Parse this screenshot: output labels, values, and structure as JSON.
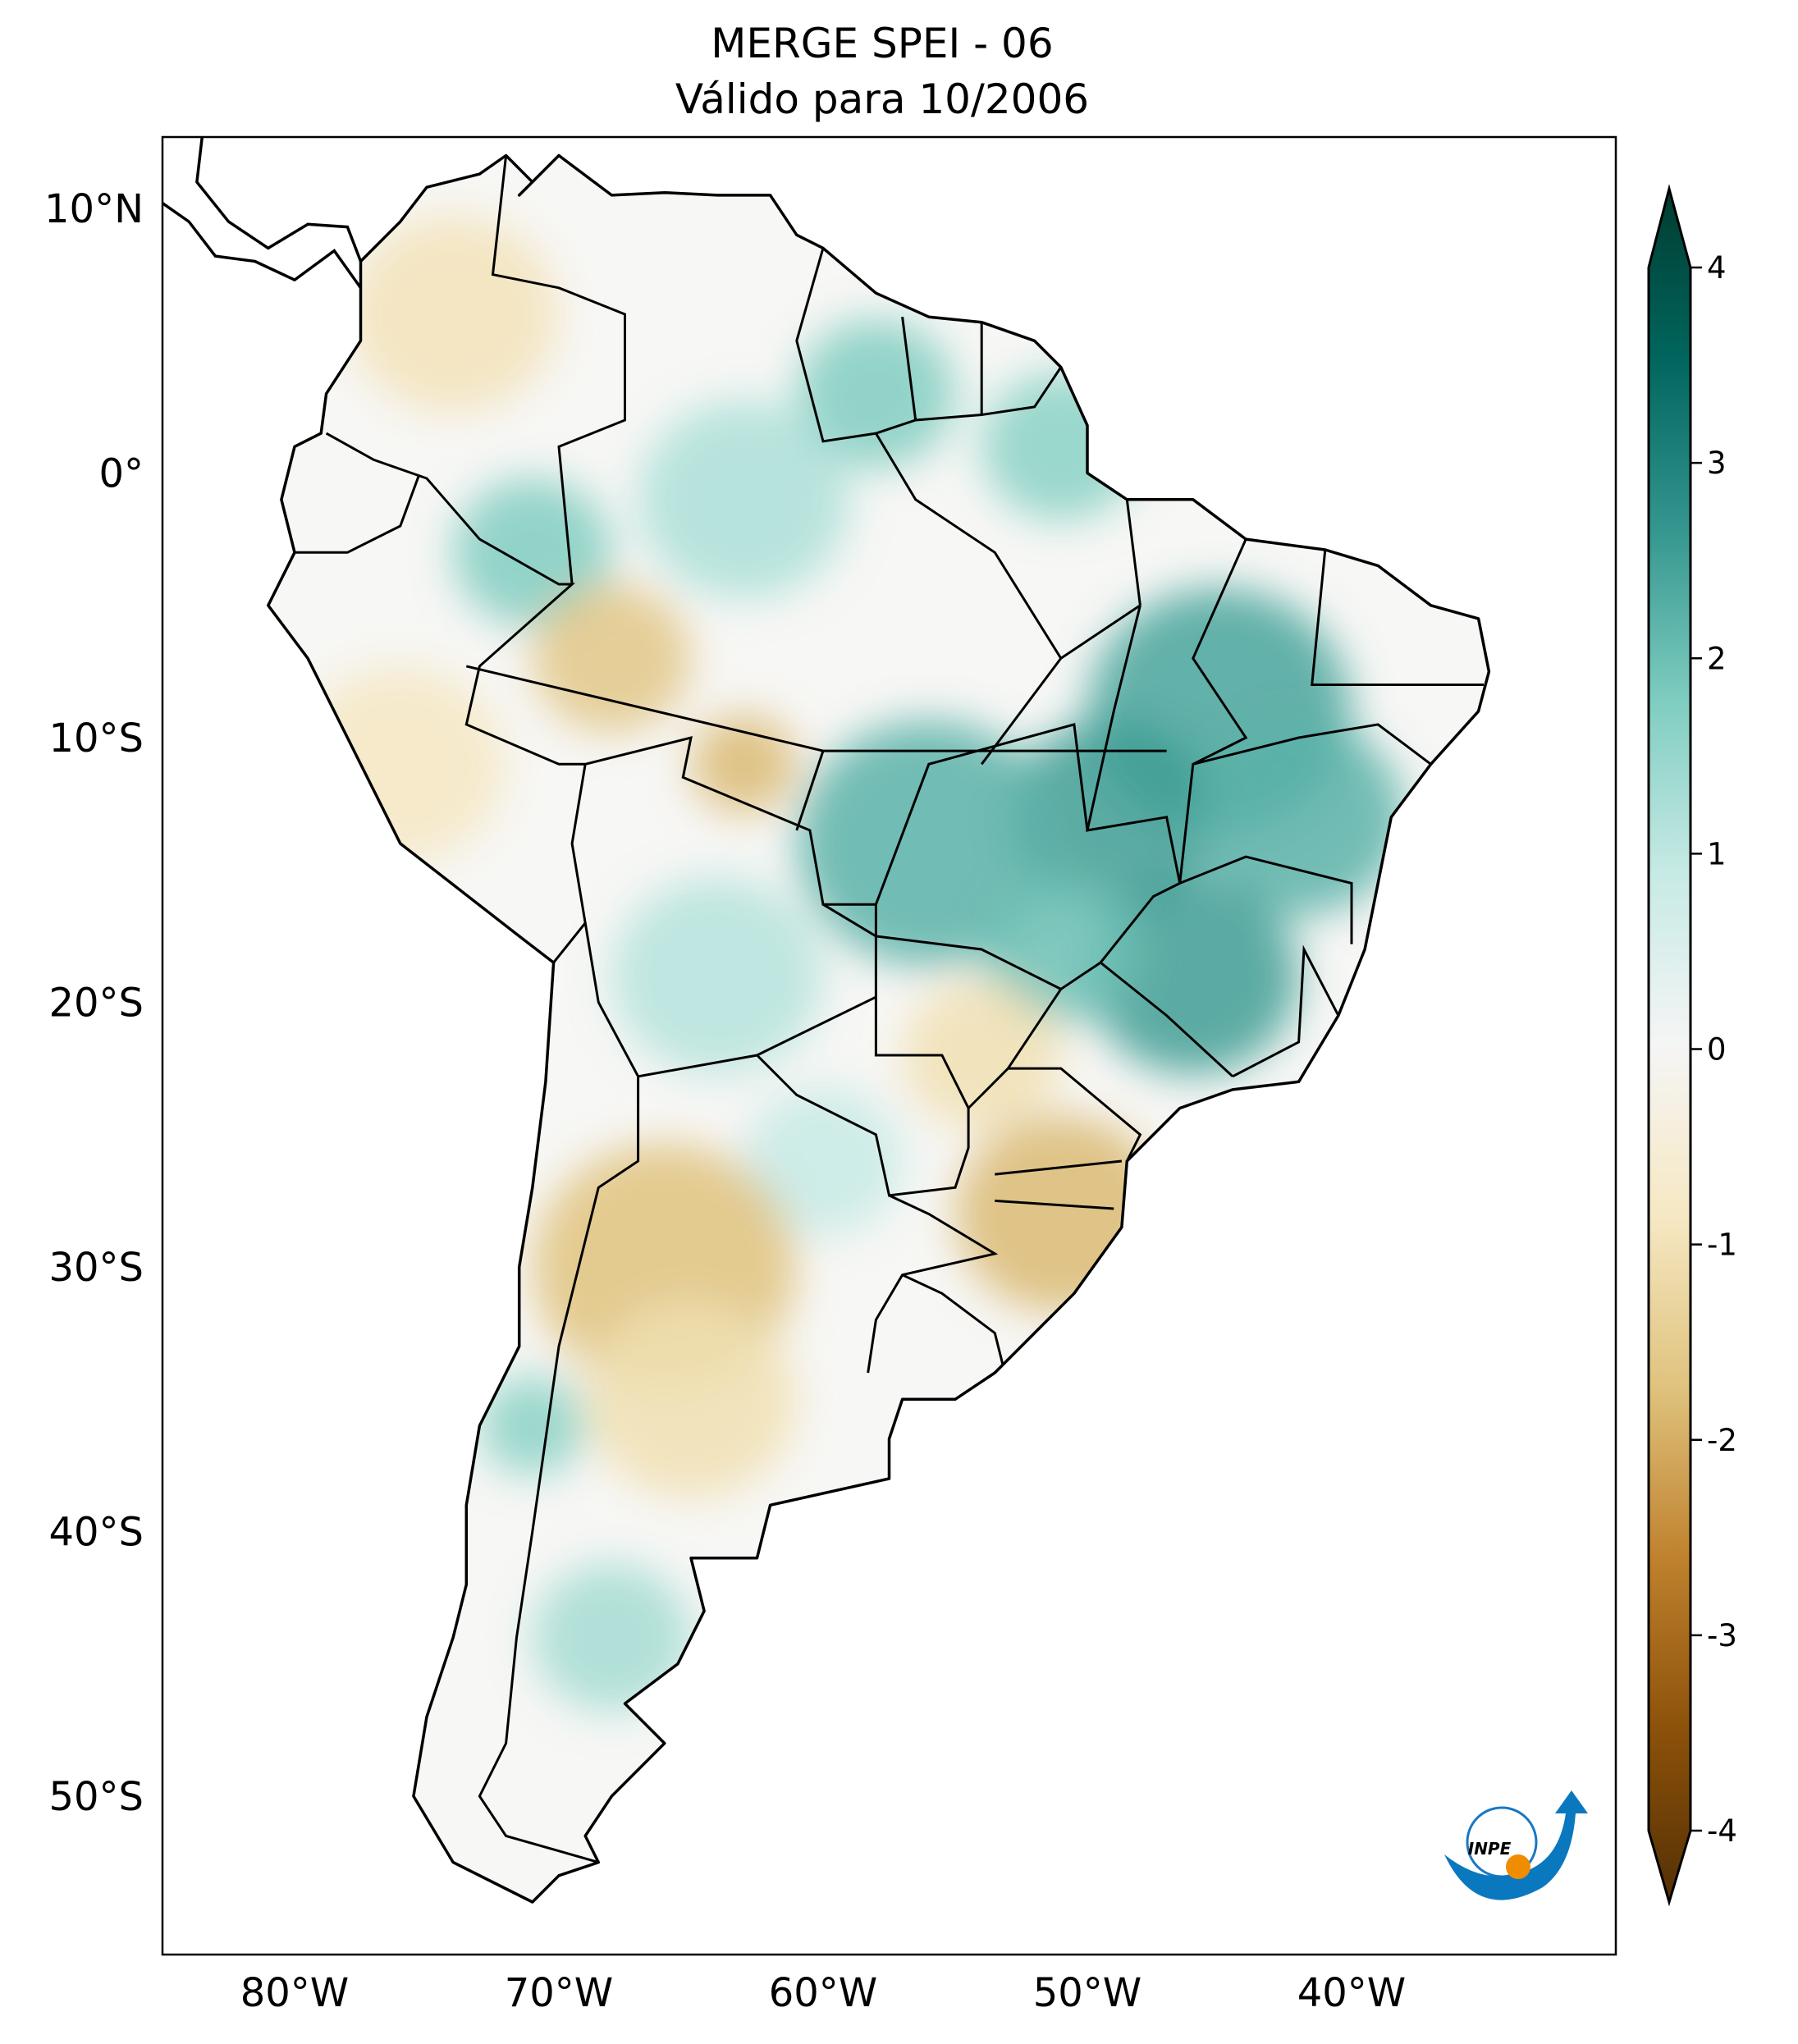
{
  "title": {
    "line1": "MERGE   SPEI - 06",
    "line2": "Válido para 10/2006"
  },
  "logo_text": "INPE",
  "chart_data": {
    "type": "heatmap",
    "map_extent": {
      "lon": [
        -85,
        -30
      ],
      "lat": [
        -56,
        12.7
      ]
    },
    "x_ticks": [
      {
        "value": -80,
        "label": "80°W"
      },
      {
        "value": -70,
        "label": "70°W"
      },
      {
        "value": -60,
        "label": "60°W"
      },
      {
        "value": -50,
        "label": "50°W"
      },
      {
        "value": -40,
        "label": "40°W"
      }
    ],
    "y_ticks": [
      {
        "value": 10,
        "label": "10°N"
      },
      {
        "value": 0,
        "label": "0°"
      },
      {
        "value": -10,
        "label": "10°S"
      },
      {
        "value": -20,
        "label": "20°S"
      },
      {
        "value": -30,
        "label": "30°S"
      },
      {
        "value": -40,
        "label": "40°S"
      },
      {
        "value": -50,
        "label": "50°S"
      }
    ],
    "colorbar": {
      "range": [
        -4,
        4
      ],
      "extend": "both",
      "ticks": [
        {
          "value": 4,
          "label": "4"
        },
        {
          "value": 3,
          "label": "3"
        },
        {
          "value": 2,
          "label": "2"
        },
        {
          "value": 1,
          "label": "1"
        },
        {
          "value": 0,
          "label": "0"
        },
        {
          "value": -1,
          "label": "-1"
        },
        {
          "value": -2,
          "label": "-2"
        },
        {
          "value": -3,
          "label": "-3"
        },
        {
          "value": -4,
          "label": "-4"
        }
      ],
      "colors": [
        "#543005",
        "#8c510a",
        "#bf812d",
        "#dfc27d",
        "#f6e8c3",
        "#f5f5f5",
        "#c7eae5",
        "#80cdc1",
        "#35978f",
        "#01665e",
        "#003c30"
      ]
    },
    "anomalies": [
      {
        "lon": -45,
        "lat": -9,
        "value": 2.2,
        "r": 5
      },
      {
        "lon": -49,
        "lat": -13,
        "value": 2.3,
        "r": 4
      },
      {
        "lon": -42,
        "lat": -13,
        "value": 2.0,
        "r": 4
      },
      {
        "lon": -56,
        "lat": -14,
        "value": 2.0,
        "r": 5
      },
      {
        "lon": -46,
        "lat": -19,
        "value": 2.3,
        "r": 4
      },
      {
        "lon": -51,
        "lat": -18,
        "value": 1.8,
        "r": 3
      },
      {
        "lon": -58,
        "lat": 3,
        "value": 1.6,
        "r": 3
      },
      {
        "lon": -51,
        "lat": 1,
        "value": 1.5,
        "r": 3
      },
      {
        "lon": -71,
        "lat": -3,
        "value": 1.6,
        "r": 3
      },
      {
        "lon": -63,
        "lat": -1,
        "value": 1.1,
        "r": 4
      },
      {
        "lon": -64,
        "lat": -19,
        "value": 1.0,
        "r": 4
      },
      {
        "lon": -68,
        "lat": -44,
        "value": 1.2,
        "r": 3
      },
      {
        "lon": -71,
        "lat": -36,
        "value": 1.5,
        "r": 2
      },
      {
        "lon": -60,
        "lat": -26,
        "value": 0.8,
        "r": 3
      },
      {
        "lon": -51,
        "lat": -28,
        "value": -1.7,
        "r": 4
      },
      {
        "lon": -66,
        "lat": -30,
        "value": -1.6,
        "r": 5
      },
      {
        "lon": -65,
        "lat": -35,
        "value": -1.0,
        "r": 4
      },
      {
        "lon": -68,
        "lat": -7,
        "value": -1.5,
        "r": 3
      },
      {
        "lon": -63,
        "lat": -11,
        "value": -1.7,
        "r": 2
      },
      {
        "lon": -74,
        "lat": 6,
        "value": -0.9,
        "r": 4
      },
      {
        "lon": -54,
        "lat": -22,
        "value": -1.0,
        "r": 3
      },
      {
        "lon": -76,
        "lat": -11,
        "value": -0.8,
        "r": 4
      }
    ]
  }
}
